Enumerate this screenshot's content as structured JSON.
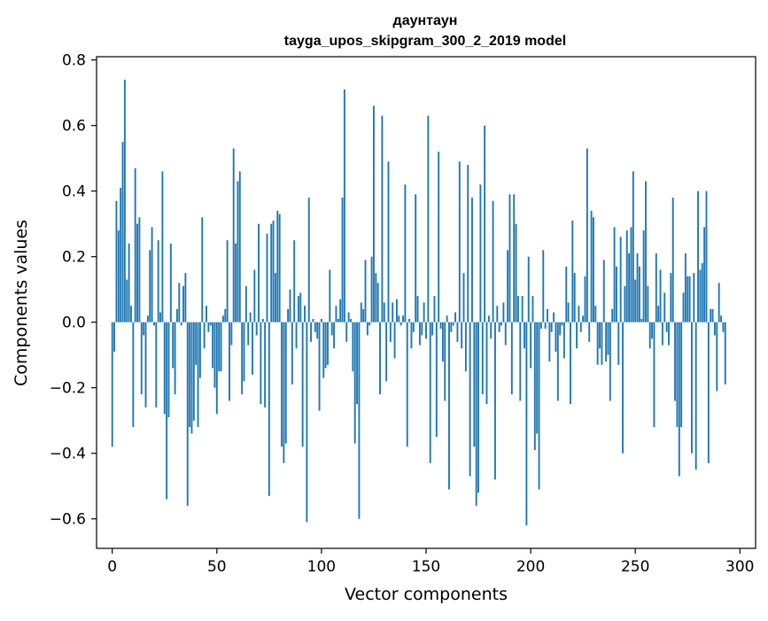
{
  "chart_data": {
    "type": "bar",
    "title_line1": "даунтаун",
    "title_line2": "tayga_upos_skipgram_300_2_2019 model",
    "xlabel": "Vector components",
    "ylabel": "Components values",
    "xlim": [
      -7.5,
      307.5
    ],
    "ylim": [
      -0.69,
      0.81
    ],
    "xticks": [
      0,
      50,
      100,
      150,
      200,
      250,
      300
    ],
    "xtick_labels": [
      "0",
      "50",
      "100",
      "150",
      "200",
      "250",
      "300"
    ],
    "yticks": [
      -0.6,
      -0.4,
      -0.2,
      0.0,
      0.2,
      0.4,
      0.6,
      0.8
    ],
    "ytick_labels": [
      "−0.6",
      "−0.4",
      "−0.2",
      "0.0",
      "0.2",
      "0.4",
      "0.6",
      "0.8"
    ],
    "bar_color": "#1f77b4",
    "grid": false,
    "values": [
      -0.38,
      -0.09,
      0.37,
      0.28,
      0.41,
      0.55,
      0.74,
      0.13,
      0.24,
      0.05,
      -0.32,
      0.47,
      0.3,
      0.32,
      -0.22,
      -0.04,
      -0.26,
      0.02,
      0.22,
      0.29,
      -0.01,
      -0.26,
      0.25,
      0.03,
      0.46,
      -0.28,
      -0.54,
      -0.29,
      0.24,
      -0.14,
      -0.22,
      0.04,
      0.12,
      -0.01,
      0.11,
      0.15,
      -0.56,
      -0.32,
      -0.34,
      -0.3,
      -0.13,
      -0.32,
      -0.17,
      0.32,
      -0.08,
      0.05,
      -0.03,
      -0.01,
      -0.14,
      -0.2,
      -0.28,
      -0.15,
      -0.15,
      0.02,
      0.04,
      0.25,
      -0.24,
      -0.07,
      0.53,
      0.24,
      0.43,
      0.46,
      -0.22,
      -0.18,
      0.11,
      -0.07,
      0.03,
      -0.16,
      0.16,
      -0.04,
      0.3,
      -0.25,
      0.01,
      -0.26,
      0.27,
      -0.53,
      0.3,
      0.31,
      0.15,
      0.34,
      0.33,
      -0.38,
      -0.43,
      -0.37,
      0.04,
      0.1,
      -0.19,
      0.25,
      -0.08,
      0.08,
      0.09,
      -0.38,
      0.05,
      -0.61,
      0.38,
      -0.06,
      0.01,
      -0.03,
      -0.05,
      -0.27,
      0.01,
      -0.17,
      -0.14,
      -0.13,
      0.16,
      -0.04,
      -0.08,
      0.05,
      0.01,
      0.07,
      0.38,
      0.71,
      -0.06,
      0.03,
      0.01,
      -0.15,
      -0.37,
      -0.25,
      -0.6,
      0.06,
      0.04,
      0.19,
      -0.04,
      -0.01,
      0.2,
      0.66,
      0.15,
      0.12,
      -0.22,
      0.63,
      0.06,
      -0.18,
      0.49,
      -0.06,
      0.06,
      -0.11,
      0.07,
      0.02,
      -0.01,
      0.02,
      0.42,
      -0.38,
      0.01,
      -0.08,
      -0.03,
      0.39,
      0.08,
      -0.07,
      -0.04,
      0.06,
      -0.05,
      0.63,
      -0.43,
      -0.04,
      0.08,
      -0.35,
      0.52,
      -0.02,
      -0.12,
      -0.24,
      0.02,
      -0.51,
      -0.03,
      -0.01,
      0.03,
      -0.06,
      0.49,
      -0.08,
      0.15,
      -0.15,
      0.48,
      -0.47,
      0.38,
      -0.38,
      -0.56,
      -0.52,
      0.42,
      -0.22,
      0.6,
      -0.25,
      0.02,
      -0.05,
      0.37,
      -0.48,
      0.05,
      -0.03,
      -0.01,
      0.06,
      -0.07,
      0.22,
      0.39,
      -0.22,
      0.39,
      0.3,
      0.08,
      -0.24,
      0.08,
      -0.08,
      -0.62,
      0.2,
      -0.14,
      0.08,
      -0.39,
      -0.34,
      -0.51,
      -0.02,
      0.22,
      -0.02,
      0.04,
      -0.12,
      -0.03,
      0.03,
      -0.09,
      -0.24,
      -0.04,
      -0.01,
      -0.11,
      0.17,
      0.06,
      -0.25,
      0.31,
      0.15,
      -0.08,
      0.05,
      -0.03,
      0.02,
      0.14,
      0.53,
      -0.06,
      0.34,
      0.32,
      0.05,
      -0.13,
      -0.08,
      -0.13,
      0.19,
      -0.12,
      -0.1,
      -0.24,
      0.04,
      0.29,
      0.17,
      -0.13,
      0.26,
      -0.4,
      0.11,
      0.28,
      0.21,
      0.29,
      0.46,
      0.13,
      0.21,
      0.17,
      0.01,
      0.28,
      0.43,
      0.11,
      -0.08,
      -0.05,
      -0.32,
      0.21,
      0.05,
      0.16,
      -0.07,
      0.09,
      -0.03,
      -0.07,
      0.15,
      0.38,
      -0.24,
      -0.32,
      -0.47,
      -0.32,
      0.09,
      0.21,
      0.14,
      0.14,
      -0.4,
      0.15,
      -0.45,
      0.4,
      0.16,
      0.18,
      0.29,
      0.4,
      -0.43,
      0.04,
      0.04,
      -0.04,
      -0.21,
      0.12,
      0.02,
      -0.03,
      -0.19
    ]
  }
}
